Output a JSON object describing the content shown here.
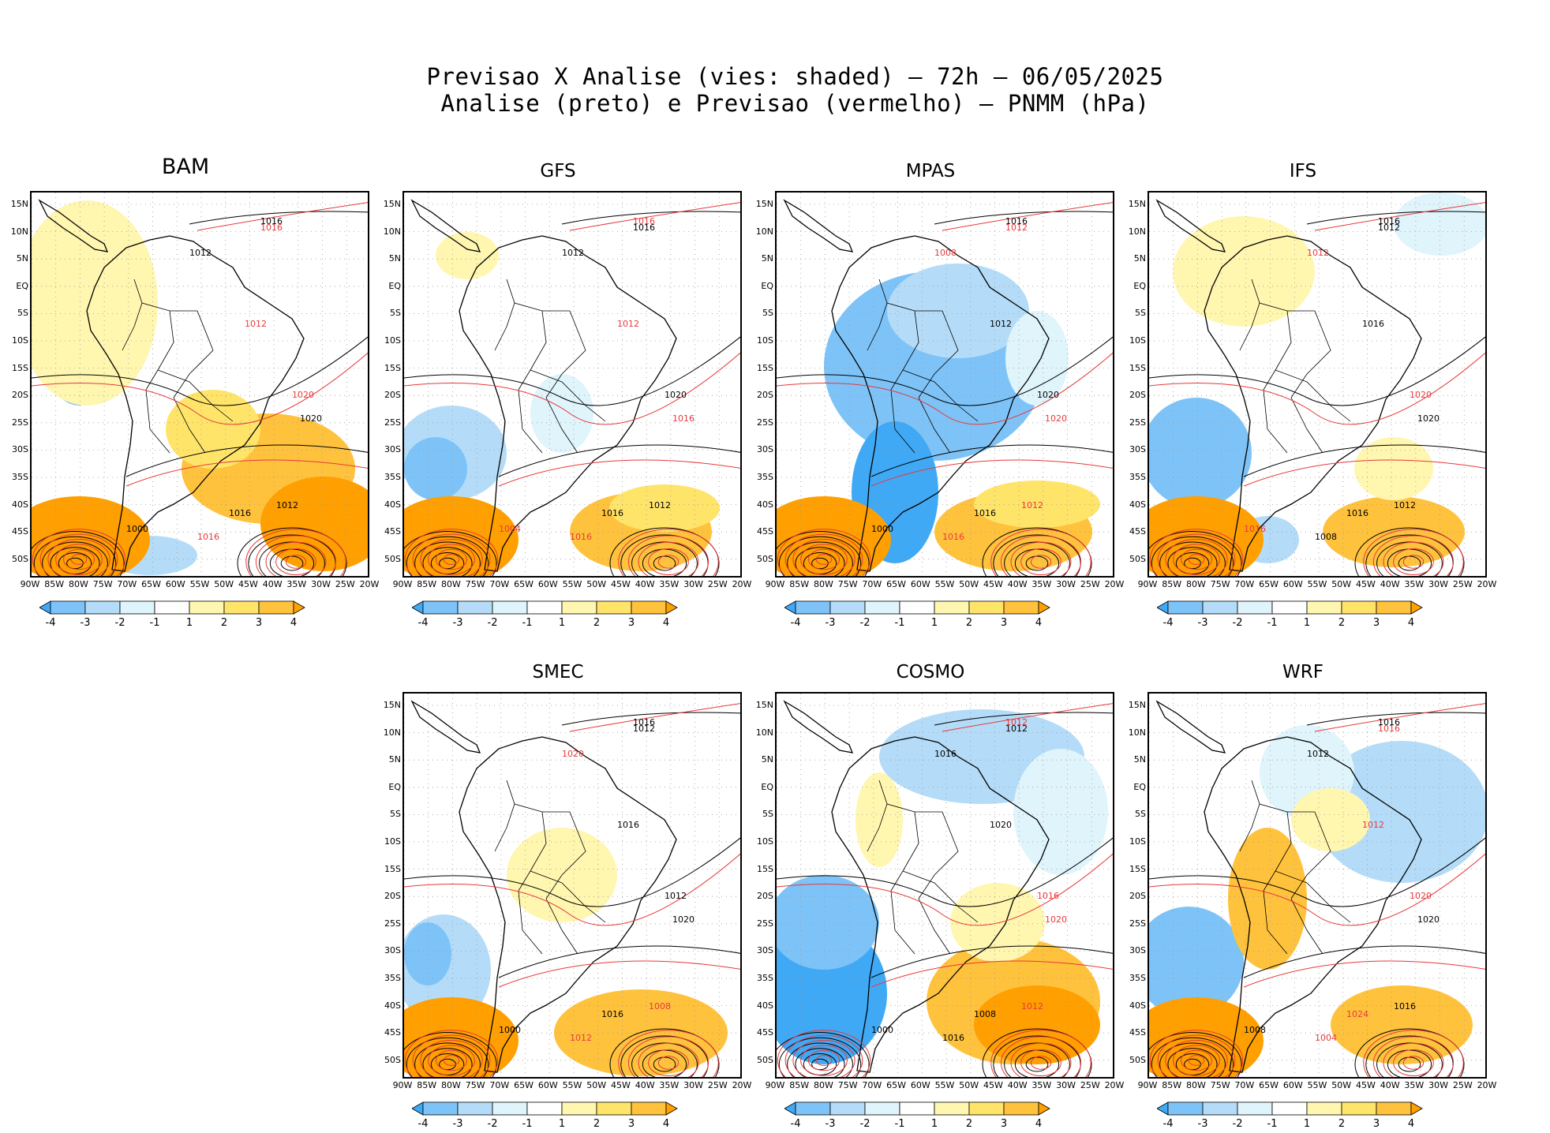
{
  "header": {
    "line1": "Previsao X Analise (vies: shaded) – 72h – 06/05/2025",
    "line2": "Analise (preto) e Previsao (vermelho) – PNMM (hPa)"
  },
  "axes": {
    "lat_labels": [
      "15N",
      "10N",
      "5N",
      "EQ",
      "5S",
      "10S",
      "15S",
      "20S",
      "25S",
      "30S",
      "35S",
      "40S",
      "45S",
      "50S"
    ],
    "lon_labels": [
      "90W",
      "85W",
      "80W",
      "75W",
      "70W",
      "65W",
      "60W",
      "55W",
      "50W",
      "45W",
      "40W",
      "35W",
      "30W",
      "25W",
      "20W"
    ]
  },
  "colorbar": {
    "labels": [
      "-4",
      "-3",
      "-2",
      "-1",
      "1",
      "2",
      "3",
      "4"
    ],
    "colors": [
      "#3fa9f5",
      "#7ec3f7",
      "#b4dcf8",
      "#dff4fb",
      "#ffffff",
      "#fff6b0",
      "#ffe46a",
      "#ffc23c",
      "#ff9f00"
    ]
  },
  "colors": {
    "analysis": "#000000",
    "forecast": "#e8383a",
    "grid": "#9a9a9a"
  },
  "models": [
    {
      "name": "BAM",
      "labels": [
        {
          "t": "1016",
          "c": "a"
        },
        {
          "t": "1016",
          "c": "f"
        },
        {
          "t": "1012",
          "c": "a"
        },
        {
          "t": "1012",
          "c": "f"
        },
        {
          "t": "1020",
          "c": "a"
        },
        {
          "t": "1020",
          "c": "f"
        },
        {
          "t": "1016",
          "c": "a"
        },
        {
          "t": "1000",
          "c": "a"
        },
        {
          "t": "1012",
          "c": "a"
        },
        {
          "t": "1016",
          "c": "f"
        }
      ]
    },
    {
      "name": "GFS",
      "labels": [
        {
          "t": "1016",
          "c": "f"
        },
        {
          "t": "1016",
          "c": "a"
        },
        {
          "t": "1012",
          "c": "a"
        },
        {
          "t": "1012",
          "c": "f"
        },
        {
          "t": "1016",
          "c": "f"
        },
        {
          "t": "1020",
          "c": "a"
        },
        {
          "t": "1016",
          "c": "a"
        },
        {
          "t": "1004",
          "c": "f"
        },
        {
          "t": "1012",
          "c": "a"
        },
        {
          "t": "1016",
          "c": "f"
        }
      ]
    },
    {
      "name": "MPAS",
      "labels": [
        {
          "t": "1016",
          "c": "a"
        },
        {
          "t": "1012",
          "c": "f"
        },
        {
          "t": "1008",
          "c": "f"
        },
        {
          "t": "1012",
          "c": "a"
        },
        {
          "t": "1020",
          "c": "f"
        },
        {
          "t": "1020",
          "c": "a"
        },
        {
          "t": "1016",
          "c": "a"
        },
        {
          "t": "1000",
          "c": "a"
        },
        {
          "t": "1012",
          "c": "f"
        },
        {
          "t": "1016",
          "c": "f"
        }
      ]
    },
    {
      "name": "IFS",
      "labels": [
        {
          "t": "1016",
          "c": "a"
        },
        {
          "t": "1012",
          "c": "a"
        },
        {
          "t": "1012",
          "c": "f"
        },
        {
          "t": "1016",
          "c": "a"
        },
        {
          "t": "1020",
          "c": "a"
        },
        {
          "t": "1020",
          "c": "f"
        },
        {
          "t": "1016",
          "c": "a"
        },
        {
          "t": "1016",
          "c": "f"
        },
        {
          "t": "1012",
          "c": "a"
        },
        {
          "t": "1008",
          "c": "a"
        }
      ]
    },
    {
      "name": "SMEC",
      "labels": [
        {
          "t": "1016",
          "c": "a"
        },
        {
          "t": "1012",
          "c": "a"
        },
        {
          "t": "1020",
          "c": "f"
        },
        {
          "t": "1016",
          "c": "a"
        },
        {
          "t": "1020",
          "c": "a"
        },
        {
          "t": "1012",
          "c": "a"
        },
        {
          "t": "1016",
          "c": "a"
        },
        {
          "t": "1000",
          "c": "a"
        },
        {
          "t": "1008",
          "c": "f"
        },
        {
          "t": "1012",
          "c": "f"
        }
      ]
    },
    {
      "name": "COSMO",
      "labels": [
        {
          "t": "1012",
          "c": "f"
        },
        {
          "t": "1012",
          "c": "a"
        },
        {
          "t": "1016",
          "c": "a"
        },
        {
          "t": "1020",
          "c": "a"
        },
        {
          "t": "1020",
          "c": "f"
        },
        {
          "t": "1016",
          "c": "f"
        },
        {
          "t": "1008",
          "c": "a"
        },
        {
          "t": "1000",
          "c": "a"
        },
        {
          "t": "1012",
          "c": "f"
        },
        {
          "t": "1016",
          "c": "a"
        }
      ]
    },
    {
      "name": "WRF",
      "labels": [
        {
          "t": "1016",
          "c": "a"
        },
        {
          "t": "1016",
          "c": "f"
        },
        {
          "t": "1012",
          "c": "a"
        },
        {
          "t": "1012",
          "c": "f"
        },
        {
          "t": "1020",
          "c": "a"
        },
        {
          "t": "1020",
          "c": "f"
        },
        {
          "t": "1024",
          "c": "f"
        },
        {
          "t": "1008",
          "c": "a"
        },
        {
          "t": "1016",
          "c": "a"
        },
        {
          "t": "1004",
          "c": "f"
        }
      ]
    }
  ]
}
